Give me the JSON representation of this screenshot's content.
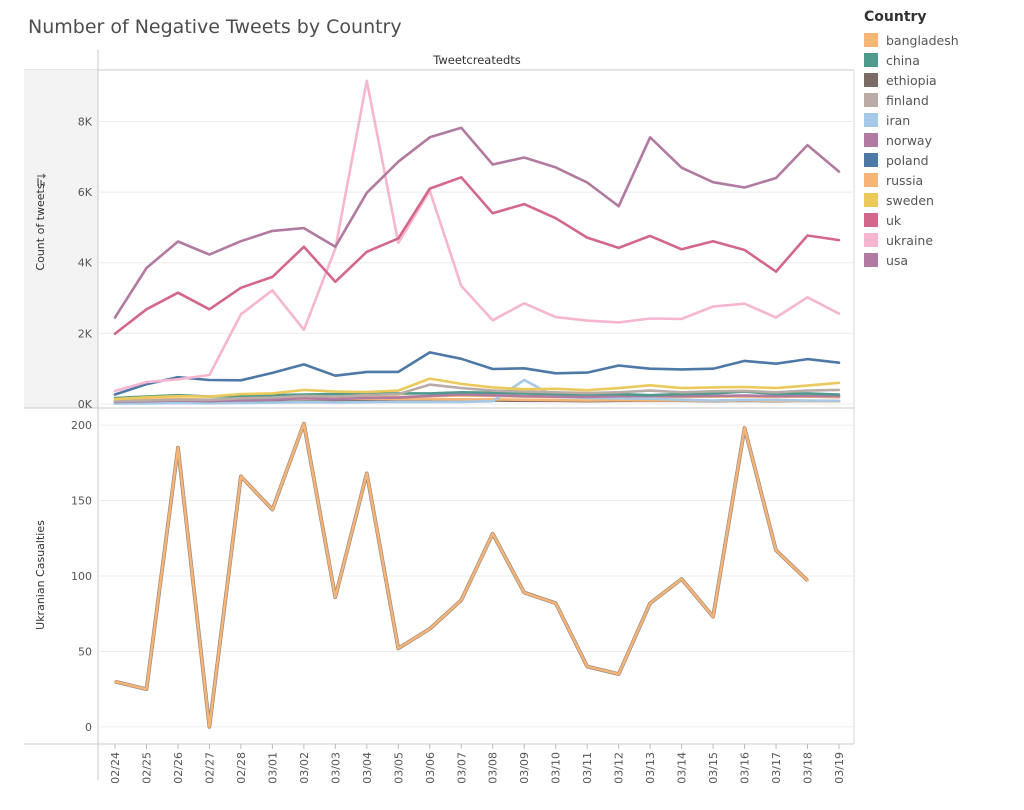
{
  "title": "Number of Negative Tweets by Country",
  "legend": {
    "title": "Country",
    "items": [
      {
        "label": "bangladesh",
        "color": "#f5b576"
      },
      {
        "label": "china",
        "color": "#4f9a8c"
      },
      {
        "label": "ethiopia",
        "color": "#7b6b67"
      },
      {
        "label": "finland",
        "color": "#b9aca7"
      },
      {
        "label": "iran",
        "color": "#a4c8e6"
      },
      {
        "label": "norway",
        "color": "#b07aa1"
      },
      {
        "label": "poland",
        "color": "#4e79a7"
      },
      {
        "label": "russia",
        "color": "#f5b576"
      },
      {
        "label": "sweden",
        "color": "#ecc95b"
      },
      {
        "label": "uk",
        "color": "#d3678b"
      },
      {
        "label": "ukraine",
        "color": "#f7b6d0"
      },
      {
        "label": "usa",
        "color": "#b07aa1"
      }
    ]
  },
  "chart_data": [
    {
      "type": "line",
      "header": "Tweetcreatedts",
      "ylabel": "Count of tweets",
      "ylim": [
        0,
        9400
      ],
      "yticks": [
        0,
        2000,
        4000,
        6000,
        8000
      ],
      "ytick_labels": [
        "0K",
        "2K",
        "4K",
        "6K",
        "8K"
      ],
      "categories": [
        "02/24",
        "02/25",
        "02/26",
        "02/27",
        "02/28",
        "03/01",
        "03/02",
        "03/03",
        "03/04",
        "03/05",
        "03/06",
        "03/07",
        "03/08",
        "03/09",
        "03/10",
        "03/11",
        "03/12",
        "03/13",
        "03/14",
        "03/15",
        "03/16",
        "03/17",
        "03/18",
        "03/19"
      ],
      "series": [
        {
          "name": "usa",
          "color": "#b07aa1",
          "values": [
            2450,
            3850,
            4600,
            4230,
            4610,
            4900,
            4980,
            4450,
            5980,
            6860,
            7550,
            7820,
            6780,
            6980,
            6700,
            6270,
            5600,
            7550,
            6690,
            6280,
            6130,
            6400,
            7330,
            6580
          ]
        },
        {
          "name": "uk",
          "color": "#d3678b",
          "values": [
            1990,
            2680,
            3150,
            2680,
            3290,
            3600,
            4450,
            3460,
            4310,
            4690,
            6100,
            6420,
            5400,
            5660,
            5260,
            4710,
            4420,
            4760,
            4380,
            4610,
            4360,
            3750,
            4770,
            4640
          ]
        },
        {
          "name": "ukraine",
          "color": "#f7b6d0",
          "values": [
            370,
            620,
            700,
            820,
            2540,
            3220,
            2100,
            4400,
            9150,
            4560,
            6030,
            3340,
            2370,
            2850,
            2460,
            2360,
            2310,
            2420,
            2410,
            2760,
            2840,
            2450,
            3020,
            2560
          ]
        },
        {
          "name": "poland",
          "color": "#4e79a7",
          "values": [
            270,
            560,
            760,
            680,
            670,
            880,
            1120,
            800,
            910,
            910,
            1460,
            1280,
            990,
            1010,
            870,
            890,
            1090,
            1000,
            980,
            1000,
            1220,
            1140,
            1270,
            1170
          ]
        },
        {
          "name": "sweden",
          "color": "#ecc95b",
          "values": [
            140,
            190,
            220,
            210,
            280,
            300,
            400,
            350,
            340,
            380,
            720,
            570,
            470,
            420,
            430,
            390,
            450,
            530,
            450,
            470,
            480,
            450,
            520,
            600
          ]
        },
        {
          "name": "finland",
          "color": "#b9aca7",
          "values": [
            80,
            100,
            120,
            120,
            160,
            180,
            230,
            210,
            250,
            280,
            550,
            450,
            380,
            350,
            330,
            310,
            330,
            380,
            330,
            360,
            370,
            330,
            380,
            400
          ]
        },
        {
          "name": "china",
          "color": "#4f9a8c",
          "values": [
            170,
            210,
            250,
            210,
            230,
            250,
            270,
            280,
            300,
            300,
            300,
            330,
            320,
            300,
            280,
            270,
            280,
            250,
            280,
            300,
            350,
            280,
            300,
            270
          ]
        },
        {
          "name": "norway",
          "color": "#b07aa1",
          "values": [
            60,
            80,
            100,
            80,
            110,
            130,
            160,
            140,
            170,
            180,
            230,
            270,
            250,
            220,
            210,
            200,
            220,
            230,
            220,
            230,
            240,
            220,
            230,
            220
          ]
        },
        {
          "name": "iran",
          "color": "#a4c8e6",
          "values": [
            10,
            15,
            25,
            20,
            30,
            40,
            50,
            45,
            55,
            60,
            60,
            60,
            80,
            680,
            200,
            170,
            160,
            150,
            120,
            100,
            120,
            110,
            100,
            90
          ]
        },
        {
          "name": "russia",
          "color": "#f5b576",
          "values": [
            90,
            110,
            130,
            120,
            140,
            150,
            170,
            160,
            180,
            200,
            220,
            240,
            230,
            210,
            200,
            190,
            200,
            210,
            200,
            210,
            210,
            200,
            210,
            190
          ]
        },
        {
          "name": "bangladesh",
          "color": "#f5b576",
          "values": [
            100,
            120,
            140,
            120,
            130,
            140,
            160,
            150,
            150,
            140,
            140,
            130,
            130,
            120,
            110,
            100,
            110,
            100,
            100,
            90,
            100,
            90,
            90,
            80
          ]
        },
        {
          "name": "ethiopia",
          "color": "#7b6b67",
          "values": [
            30,
            40,
            50,
            40,
            50,
            60,
            70,
            70,
            80,
            80,
            100,
            110,
            100,
            90,
            90,
            80,
            90,
            90,
            90,
            80,
            90,
            80,
            90,
            80
          ]
        }
      ]
    },
    {
      "type": "line",
      "ylabel": "Ukranian Casualties",
      "ylim": [
        -10,
        210
      ],
      "yticks": [
        0,
        50,
        100,
        150,
        200
      ],
      "ytick_labels": [
        "0",
        "50",
        "100",
        "150",
        "200"
      ],
      "categories": [
        "02/24",
        "02/25",
        "02/26",
        "02/27",
        "02/28",
        "03/01",
        "03/02",
        "03/03",
        "03/04",
        "03/05",
        "03/06",
        "03/07",
        "03/08",
        "03/09",
        "03/10",
        "03/11",
        "03/12",
        "03/13",
        "03/14",
        "03/15",
        "03/16",
        "03/17",
        "03/18",
        "03/19"
      ],
      "series": [
        {
          "color": "#f5b576",
          "values": [
            30,
            25,
            185,
            0,
            166,
            144,
            201,
            86,
            168,
            52,
            65,
            84,
            128,
            89,
            82,
            40,
            35,
            82,
            98,
            73,
            198,
            117,
            97,
            null
          ]
        }
      ]
    }
  ]
}
